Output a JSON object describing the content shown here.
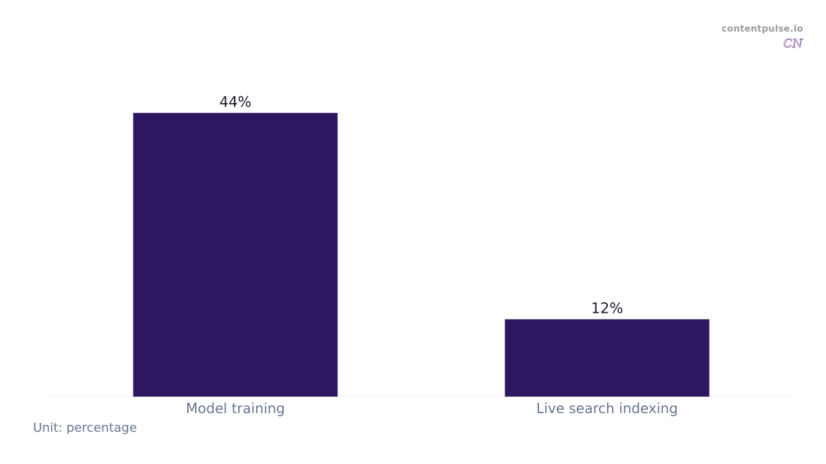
{
  "brand": {
    "site": "contentpulse.io",
    "logo_text": "CN"
  },
  "footnote": "Unit: percentage",
  "colors": {
    "bar": "#2e1761",
    "value_label": "#1a1a2e",
    "category_label": "#66758f",
    "baseline": "#e9ecef",
    "logo": "#9a7ab8"
  },
  "chart_data": {
    "type": "bar",
    "categories": [
      "Model training",
      "Live search indexing"
    ],
    "values": [
      44,
      12
    ],
    "value_labels": [
      "44%",
      "12%"
    ],
    "title": "",
    "xlabel": "",
    "ylabel": "",
    "ylim": [
      0,
      50
    ],
    "grid": false,
    "legend": "none"
  }
}
